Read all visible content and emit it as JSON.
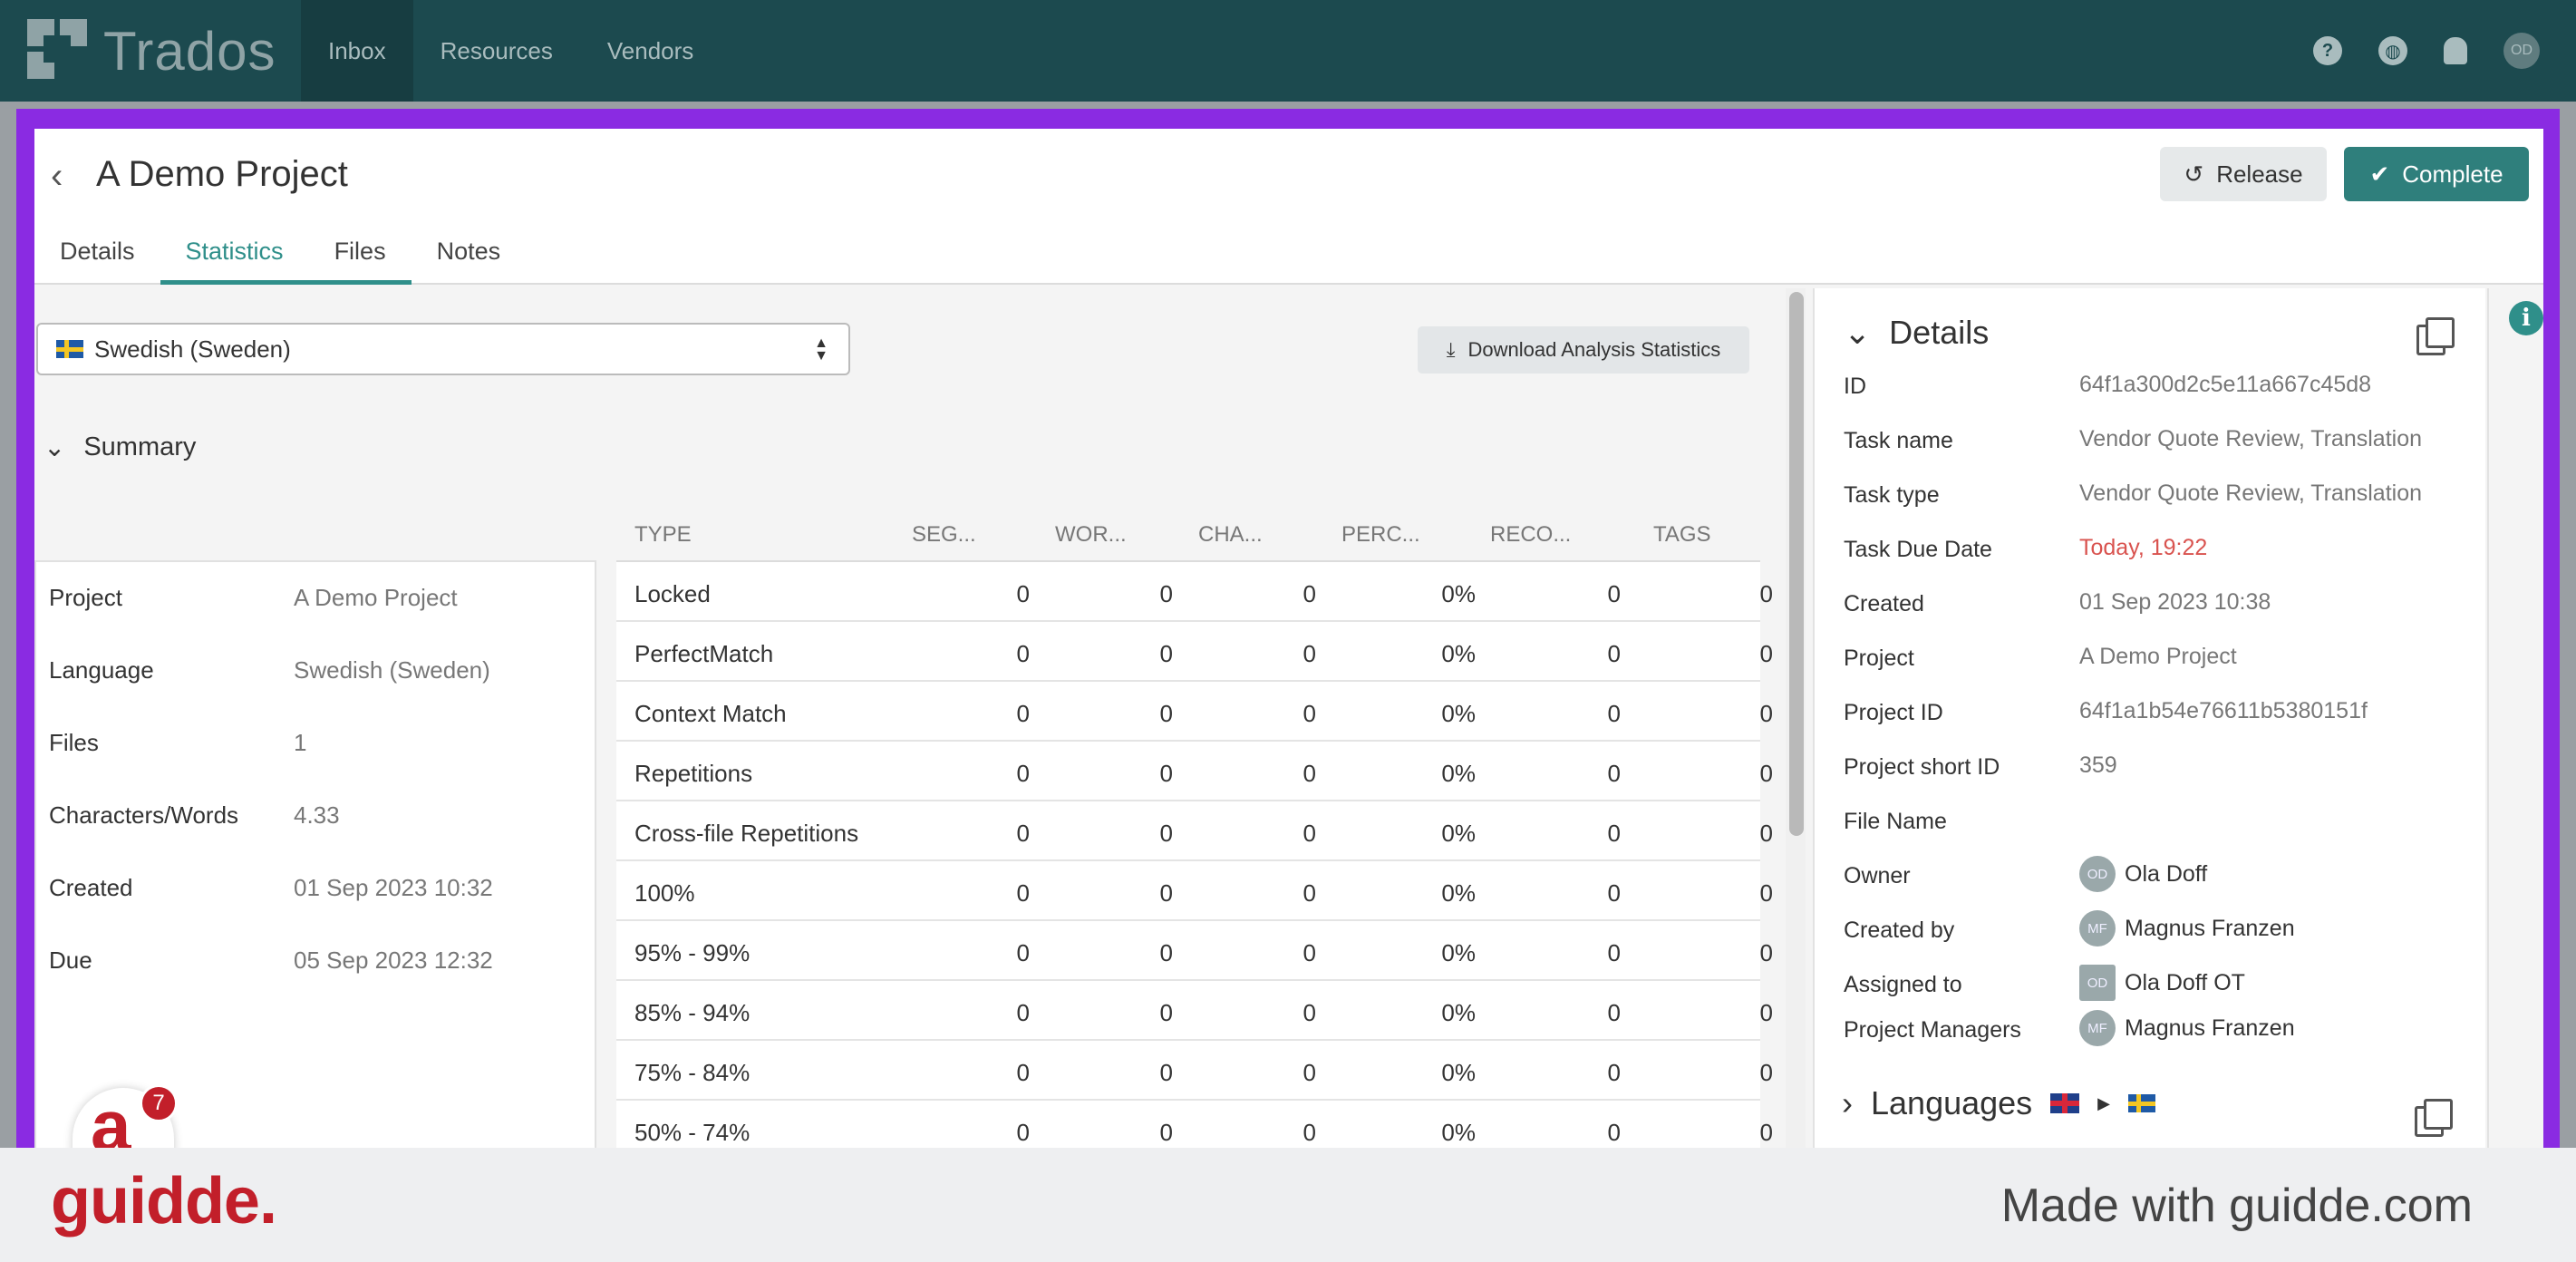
{
  "app": {
    "logo_text": "Trados",
    "nav": [
      "Inbox",
      "Resources",
      "Vendors"
    ],
    "active_nav": "Inbox",
    "avatar_initials": "OD"
  },
  "header": {
    "title": "A Demo Project",
    "release_label": "Release",
    "complete_label": "Complete",
    "tabs": [
      "Details",
      "Statistics",
      "Files",
      "Notes"
    ],
    "active_tab": "Statistics"
  },
  "stats": {
    "language_select": "Swedish (Sweden)",
    "download_label": "Download Analysis Statistics",
    "summary_title": "Summary",
    "summary": [
      {
        "label": "Project",
        "value": "A Demo Project"
      },
      {
        "label": "Language",
        "value": "Swedish (Sweden)"
      },
      {
        "label": "Files",
        "value": "1"
      },
      {
        "label": "Characters/Words",
        "value": "4.33"
      },
      {
        "label": "Created",
        "value": "01 Sep 2023 10:32"
      },
      {
        "label": "Due",
        "value": "05 Sep 2023 12:32"
      }
    ],
    "columns": [
      "TYPE",
      "SEG...",
      "WOR...",
      "CHA...",
      "PERC...",
      "RECO...",
      "TAGS"
    ],
    "rows": [
      [
        "Locked",
        "0",
        "0",
        "0",
        "0%",
        "0",
        "0"
      ],
      [
        "PerfectMatch",
        "0",
        "0",
        "0",
        "0%",
        "0",
        "0"
      ],
      [
        "Context Match",
        "0",
        "0",
        "0",
        "0%",
        "0",
        "0"
      ],
      [
        "Repetitions",
        "0",
        "0",
        "0",
        "0%",
        "0",
        "0"
      ],
      [
        "Cross-file Repetitions",
        "0",
        "0",
        "0",
        "0%",
        "0",
        "0"
      ],
      [
        "100%",
        "0",
        "0",
        "0",
        "0%",
        "0",
        "0"
      ],
      [
        "95% - 99%",
        "0",
        "0",
        "0",
        "0%",
        "0",
        "0"
      ],
      [
        "85% - 94%",
        "0",
        "0",
        "0",
        "0%",
        "0",
        "0"
      ],
      [
        "75% - 84%",
        "0",
        "0",
        "0",
        "0%",
        "0",
        "0"
      ],
      [
        "50% - 74%",
        "0",
        "0",
        "0",
        "0%",
        "0",
        "0"
      ]
    ]
  },
  "details": {
    "title": "Details",
    "fields": [
      {
        "label": "ID",
        "value": "64f1a300d2c5e11a667c45d8"
      },
      {
        "label": "Task name",
        "value": "Vendor Quote Review, Translation"
      },
      {
        "label": "Task type",
        "value": "Vendor Quote Review, Translation"
      },
      {
        "label": "Task Due Date",
        "value": "Today, 19:22"
      },
      {
        "label": "Created",
        "value": "01 Sep 2023 10:38"
      },
      {
        "label": "Project",
        "value": "A Demo Project"
      },
      {
        "label": "Project ID",
        "value": "64f1a1b54e76611b5380151f"
      },
      {
        "label": "Project short ID",
        "value": "359"
      },
      {
        "label": "File Name",
        "value": ""
      }
    ],
    "people": [
      {
        "label": "Owner",
        "initials": "OD",
        "name": "Ola Doff"
      },
      {
        "label": "Created by",
        "initials": "MF",
        "name": "Magnus Franzen"
      },
      {
        "label": "Assigned to",
        "initials": "OD",
        "name": "Ola Doff OT"
      },
      {
        "label": "Project Managers",
        "initials": "MF",
        "name": "Magnus Franzen"
      }
    ],
    "languages_title": "Languages"
  },
  "overlay": {
    "bubble_letter": "a",
    "badge_count": "7"
  },
  "footer": {
    "brand": "guidde.",
    "made_with": "Made with guidde.com"
  },
  "colors": {
    "topbar": "#1c4a4f",
    "accent": "#2f8f8a",
    "frame": "#8a2be2",
    "brand_red": "#c21f2a"
  }
}
